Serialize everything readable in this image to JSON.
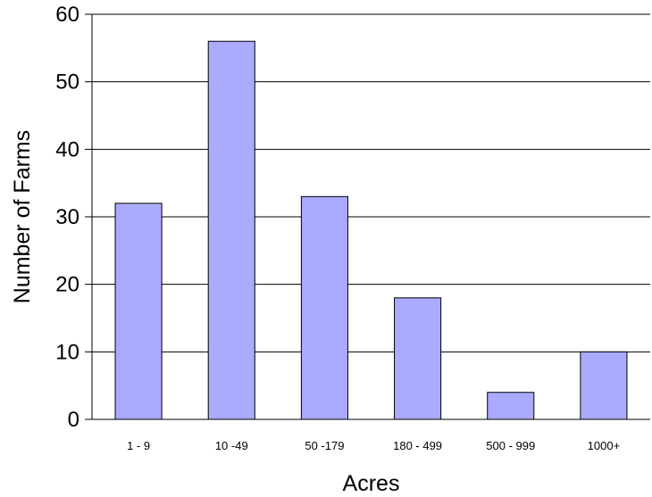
{
  "chart_data": {
    "type": "bar",
    "title": "",
    "xlabel": "Acres",
    "ylabel": "Number of Farms",
    "categories": [
      "1 - 9",
      "10 -49",
      "50 -179",
      "180 - 499",
      "500 - 999",
      "1000+"
    ],
    "values": [
      32,
      56,
      33,
      18,
      4,
      10
    ],
    "ylim": [
      0,
      60
    ],
    "yticks": [
      "0",
      "10",
      "20",
      "30",
      "40",
      "50",
      "60"
    ],
    "grid": true,
    "legend": "none",
    "colors": {
      "bar_fill": "#AAAAFF",
      "bar_stroke": "#000000",
      "grid": "#000000",
      "axis": "#000000"
    }
  }
}
